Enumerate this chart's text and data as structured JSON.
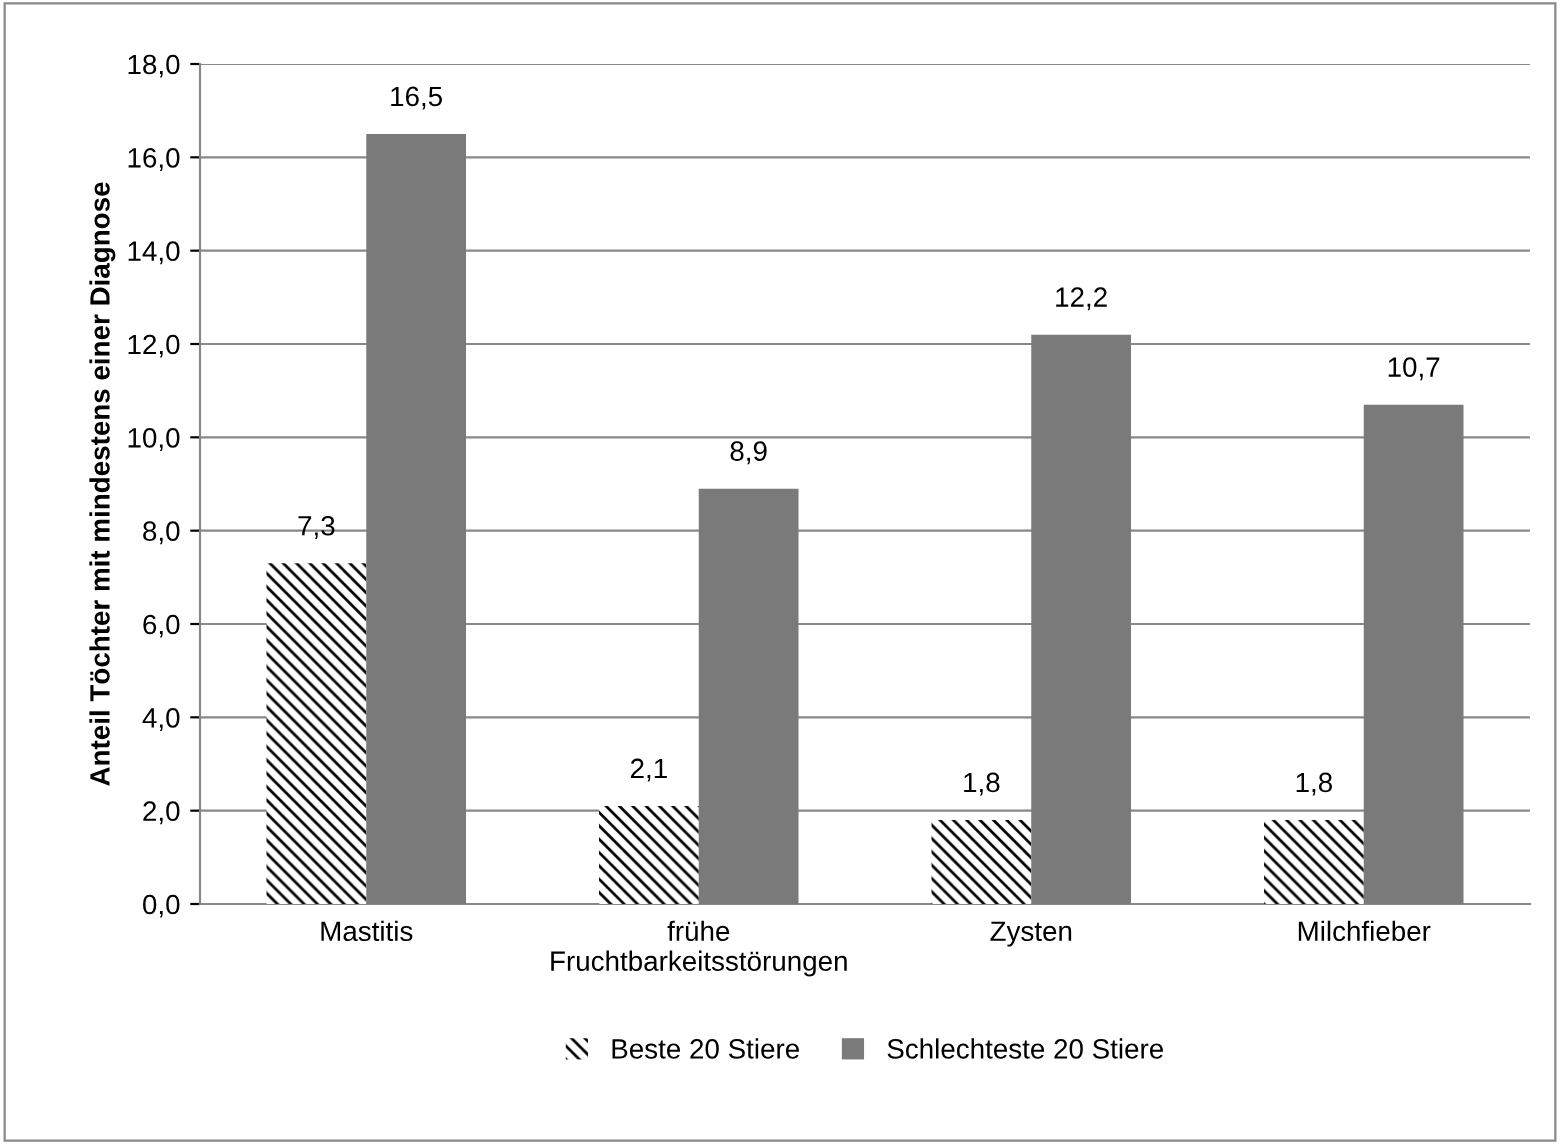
{
  "chart_data": {
    "type": "bar",
    "ylabel": "Anteil Töchter mit mindestens einer Diagnose",
    "categories": [
      "Mastitis",
      "frühe\nFruchtbarkeitsstörungen",
      "Zysten",
      "Milchfieber"
    ],
    "series": [
      {
        "name": "Beste 20 Stiere",
        "color": "#000000",
        "values": [
          7.3,
          2.1,
          1.8,
          1.8
        ],
        "value_labels": [
          "7,3",
          "2,1",
          "1,8",
          "1,8"
        ]
      },
      {
        "name": "Schlechteste 20 Stiere",
        "color": "#7a7a7a",
        "values": [
          16.5,
          8.9,
          12.2,
          10.7
        ],
        "value_labels": [
          "16,5",
          "8,9",
          "12,2",
          "10,7"
        ]
      }
    ],
    "ylim": [
      0,
      18
    ],
    "yticks": [
      {
        "value": 0,
        "label": "0,0"
      },
      {
        "value": 2,
        "label": "2,0"
      },
      {
        "value": 4,
        "label": "4,0"
      },
      {
        "value": 6,
        "label": "6,0"
      },
      {
        "value": 8,
        "label": "8,0"
      },
      {
        "value": 10,
        "label": "10,0"
      },
      {
        "value": 12,
        "label": "12,0"
      },
      {
        "value": 14,
        "label": "14,0"
      },
      {
        "value": 16,
        "label": "16,0"
      },
      {
        "value": 18,
        "label": "18,0"
      }
    ],
    "grid": "y",
    "legend": "bottom"
  }
}
